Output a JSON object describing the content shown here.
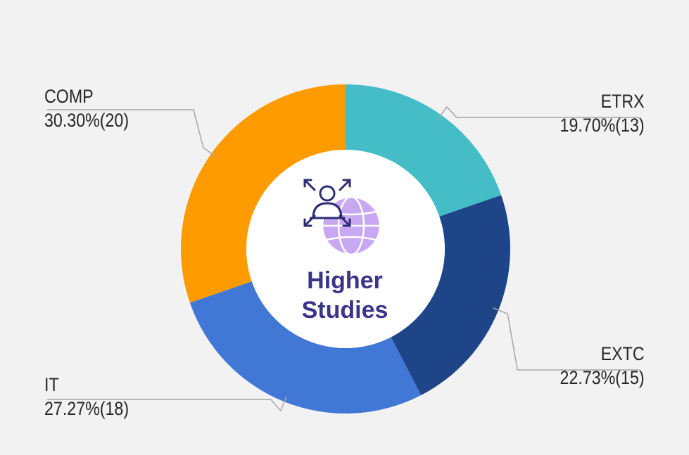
{
  "chart_data": {
    "type": "pie",
    "donut": true,
    "center_title": [
      "Higher",
      "Studies"
    ],
    "center_icon": "person-globe-icon",
    "categories": [
      "ETRX",
      "EXTC",
      "IT",
      "COMP"
    ],
    "values": [
      13,
      15,
      18,
      20
    ],
    "percent_labels": [
      "19.70%(13)",
      "22.73%(15)",
      "27.27%(18)",
      "30.30%(20)"
    ],
    "colors": [
      "#45bdc7",
      "#1d4587",
      "#4177d5",
      "#fd9b00"
    ],
    "legend": "none"
  }
}
